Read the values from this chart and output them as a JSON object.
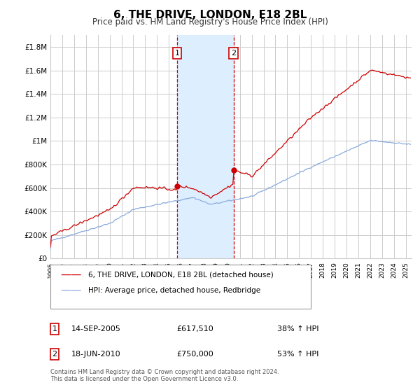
{
  "title": "6, THE DRIVE, LONDON, E18 2BL",
  "subtitle": "Price paid vs. HM Land Registry's House Price Index (HPI)",
  "ylabel_ticks": [
    "£0",
    "£200K",
    "£400K",
    "£600K",
    "£800K",
    "£1M",
    "£1.2M",
    "£1.4M",
    "£1.6M",
    "£1.8M"
  ],
  "ylabel_values": [
    0,
    200000,
    400000,
    600000,
    800000,
    1000000,
    1200000,
    1400000,
    1600000,
    1800000
  ],
  "ylim": [
    0,
    1900000
  ],
  "xlim_start": 1995.0,
  "xlim_end": 2025.5,
  "line1_color": "#cc0000",
  "line2_color": "#88aadd",
  "marker1_date": 2005.71,
  "marker1_value": 617510,
  "marker2_date": 2010.46,
  "marker2_value": 750000,
  "sale1_label": "1",
  "sale1_date_str": "14-SEP-2005",
  "sale1_price_str": "£617,510",
  "sale1_hpi_str": "38% ↑ HPI",
  "sale2_label": "2",
  "sale2_date_str": "18-JUN-2010",
  "sale2_price_str": "£750,000",
  "sale2_hpi_str": "53% ↑ HPI",
  "legend_label1": "6, THE DRIVE, LONDON, E18 2BL (detached house)",
  "legend_label2": "HPI: Average price, detached house, Redbridge",
  "footnote": "Contains HM Land Registry data © Crown copyright and database right 2024.\nThis data is licensed under the Open Government Licence v3.0.",
  "vline1_x": 2005.71,
  "vline2_x": 2010.46,
  "shade_color": "#ddeeff",
  "background_color": "#ffffff",
  "grid_color": "#cccccc"
}
